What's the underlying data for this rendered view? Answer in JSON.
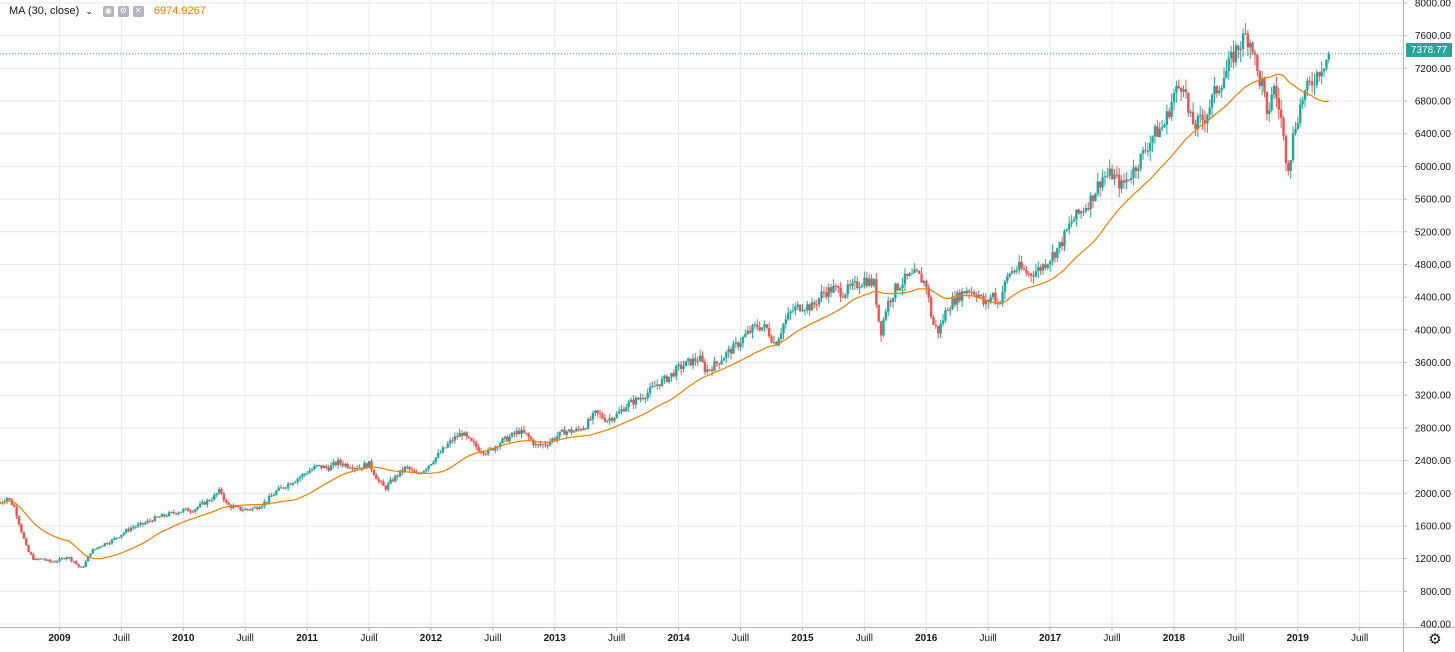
{
  "study_legend": {
    "name": "MA (30, close)",
    "value": "6974.9267",
    "value_color": "#f57c00"
  },
  "last_price": {
    "label": "7378.77",
    "value": 7378.77,
    "color": "#26a69a"
  },
  "icons": {
    "settings": "gear-icon",
    "legend_eye": "eye-icon",
    "legend_settings": "settings-icon",
    "legend_remove": "close-icon"
  },
  "colors": {
    "up": "#26a69a",
    "down": "#ef5350",
    "ma": "#f57c00",
    "grid": "#e6e8ee",
    "last_line": "#26a69a"
  },
  "chart_data": {
    "type": "candlestick",
    "ylim": [
      400,
      8000
    ],
    "y_ticks": [
      "400.00",
      "800.00",
      "1200.00",
      "1600.00",
      "2000.00",
      "2400.00",
      "2800.00",
      "3200.00",
      "3600.00",
      "4000.00",
      "4400.00",
      "4800.00",
      "5200.00",
      "5600.00",
      "6000.00",
      "6400.00",
      "6800.00",
      "7200.00",
      "7600.00",
      "8000.00"
    ],
    "x_ticks": [
      {
        "label": "2009",
        "t": 2009.0
      },
      {
        "label": "Juill",
        "t": 2009.5
      },
      {
        "label": "2010",
        "t": 2010.0
      },
      {
        "label": "Juill",
        "t": 2010.5
      },
      {
        "label": "2011",
        "t": 2011.0
      },
      {
        "label": "Juill",
        "t": 2011.5
      },
      {
        "label": "2012",
        "t": 2012.0
      },
      {
        "label": "Juill",
        "t": 2012.5
      },
      {
        "label": "2013",
        "t": 2013.0
      },
      {
        "label": "Juill",
        "t": 2013.5
      },
      {
        "label": "2014",
        "t": 2014.0
      },
      {
        "label": "Juill",
        "t": 2014.5
      },
      {
        "label": "2015",
        "t": 2015.0
      },
      {
        "label": "Juill",
        "t": 2015.5
      },
      {
        "label": "2016",
        "t": 2016.0
      },
      {
        "label": "Juill",
        "t": 2016.5
      },
      {
        "label": "2017",
        "t": 2017.0
      },
      {
        "label": "Juill",
        "t": 2017.5
      },
      {
        "label": "2018",
        "t": 2018.0
      },
      {
        "label": "Juill",
        "t": 2018.5
      },
      {
        "label": "2019",
        "t": 2019.0
      },
      {
        "label": "Juill",
        "t": 2019.5
      }
    ],
    "x_range": [
      2008.52,
      2019.85
    ],
    "price_path": [
      [
        2008.52,
        1880
      ],
      [
        2008.58,
        1950
      ],
      [
        2008.64,
        1820
      ],
      [
        2008.7,
        1500
      ],
      [
        2008.74,
        1300
      ],
      [
        2008.8,
        1180
      ],
      [
        2008.86,
        1200
      ],
      [
        2008.92,
        1160
      ],
      [
        2009.0,
        1180
      ],
      [
        2009.06,
        1230
      ],
      [
        2009.12,
        1160
      ],
      [
        2009.17,
        1080
      ],
      [
        2009.2,
        1120
      ],
      [
        2009.25,
        1280
      ],
      [
        2009.33,
        1360
      ],
      [
        2009.42,
        1420
      ],
      [
        2009.5,
        1500
      ],
      [
        2009.58,
        1580
      ],
      [
        2009.67,
        1620
      ],
      [
        2009.75,
        1680
      ],
      [
        2009.83,
        1720
      ],
      [
        2009.92,
        1760
      ],
      [
        2010.0,
        1790
      ],
      [
        2010.08,
        1800
      ],
      [
        2010.17,
        1880
      ],
      [
        2010.25,
        1960
      ],
      [
        2010.3,
        2040
      ],
      [
        2010.35,
        1860
      ],
      [
        2010.42,
        1820
      ],
      [
        2010.5,
        1800
      ],
      [
        2010.58,
        1820
      ],
      [
        2010.67,
        1900
      ],
      [
        2010.75,
        2020
      ],
      [
        2010.83,
        2100
      ],
      [
        2010.92,
        2180
      ],
      [
        2011.0,
        2260
      ],
      [
        2011.08,
        2330
      ],
      [
        2011.17,
        2310
      ],
      [
        2011.25,
        2380
      ],
      [
        2011.33,
        2340
      ],
      [
        2011.42,
        2320
      ],
      [
        2011.5,
        2360
      ],
      [
        2011.58,
        2140
      ],
      [
        2011.63,
        2060
      ],
      [
        2011.7,
        2180
      ],
      [
        2011.8,
        2320
      ],
      [
        2011.88,
        2220
      ],
      [
        2011.95,
        2300
      ],
      [
        2012.0,
        2380
      ],
      [
        2012.08,
        2500
      ],
      [
        2012.17,
        2650
      ],
      [
        2012.25,
        2740
      ],
      [
        2012.3,
        2650
      ],
      [
        2012.38,
        2550
      ],
      [
        2012.46,
        2500
      ],
      [
        2012.55,
        2620
      ],
      [
        2012.63,
        2680
      ],
      [
        2012.71,
        2760
      ],
      [
        2012.78,
        2700
      ],
      [
        2012.85,
        2580
      ],
      [
        2012.92,
        2600
      ],
      [
        2013.0,
        2680
      ],
      [
        2013.08,
        2760
      ],
      [
        2013.17,
        2760
      ],
      [
        2013.25,
        2830
      ],
      [
        2013.33,
        2980
      ],
      [
        2013.42,
        2900
      ],
      [
        2013.5,
        2960
      ],
      [
        2013.58,
        3080
      ],
      [
        2013.67,
        3150
      ],
      [
        2013.75,
        3230
      ],
      [
        2013.83,
        3340
      ],
      [
        2013.92,
        3420
      ],
      [
        2014.0,
        3530
      ],
      [
        2014.08,
        3600
      ],
      [
        2014.17,
        3650
      ],
      [
        2014.22,
        3500
      ],
      [
        2014.3,
        3580
      ],
      [
        2014.38,
        3700
      ],
      [
        2014.46,
        3800
      ],
      [
        2014.54,
        3930
      ],
      [
        2014.63,
        4050
      ],
      [
        2014.71,
        4020
      ],
      [
        2014.78,
        3820
      ],
      [
        2014.85,
        4080
      ],
      [
        2014.92,
        4240
      ],
      [
        2015.0,
        4300
      ],
      [
        2015.08,
        4280
      ],
      [
        2015.17,
        4460
      ],
      [
        2015.25,
        4500
      ],
      [
        2015.33,
        4460
      ],
      [
        2015.42,
        4530
      ],
      [
        2015.5,
        4620
      ],
      [
        2015.58,
        4560
      ],
      [
        2015.63,
        3950
      ],
      [
        2015.68,
        4300
      ],
      [
        2015.75,
        4500
      ],
      [
        2015.83,
        4620
      ],
      [
        2015.92,
        4680
      ],
      [
        2016.0,
        4560
      ],
      [
        2016.05,
        4080
      ],
      [
        2016.1,
        3980
      ],
      [
        2016.17,
        4280
      ],
      [
        2016.25,
        4400
      ],
      [
        2016.33,
        4500
      ],
      [
        2016.42,
        4440
      ],
      [
        2016.47,
        4300
      ],
      [
        2016.54,
        4440
      ],
      [
        2016.58,
        4320
      ],
      [
        2016.67,
        4700
      ],
      [
        2016.75,
        4760
      ],
      [
        2016.83,
        4680
      ],
      [
        2016.92,
        4750
      ],
      [
        2017.0,
        4880
      ],
      [
        2017.08,
        5030
      ],
      [
        2017.17,
        5320
      ],
      [
        2017.25,
        5450
      ],
      [
        2017.33,
        5600
      ],
      [
        2017.42,
        5870
      ],
      [
        2017.5,
        5900
      ],
      [
        2017.58,
        5760
      ],
      [
        2017.67,
        5950
      ],
      [
        2017.75,
        6150
      ],
      [
        2017.83,
        6380
      ],
      [
        2017.92,
        6500
      ],
      [
        2018.0,
        6880
      ],
      [
        2018.08,
        7050
      ],
      [
        2018.12,
        6600
      ],
      [
        2018.17,
        6500
      ],
      [
        2018.25,
        6600
      ],
      [
        2018.33,
        6900
      ],
      [
        2018.42,
        7150
      ],
      [
        2018.5,
        7420
      ],
      [
        2018.58,
        7600
      ],
      [
        2018.63,
        7520
      ],
      [
        2018.68,
        7080
      ],
      [
        2018.72,
        7000
      ],
      [
        2018.75,
        6550
      ],
      [
        2018.8,
        7000
      ],
      [
        2018.86,
        6650
      ],
      [
        2018.9,
        6150
      ],
      [
        2018.93,
        6000
      ],
      [
        2018.97,
        6450
      ],
      [
        2019.04,
        6850
      ],
      [
        2019.12,
        7050
      ],
      [
        2019.2,
        7250
      ],
      [
        2019.26,
        7378.77
      ]
    ]
  }
}
